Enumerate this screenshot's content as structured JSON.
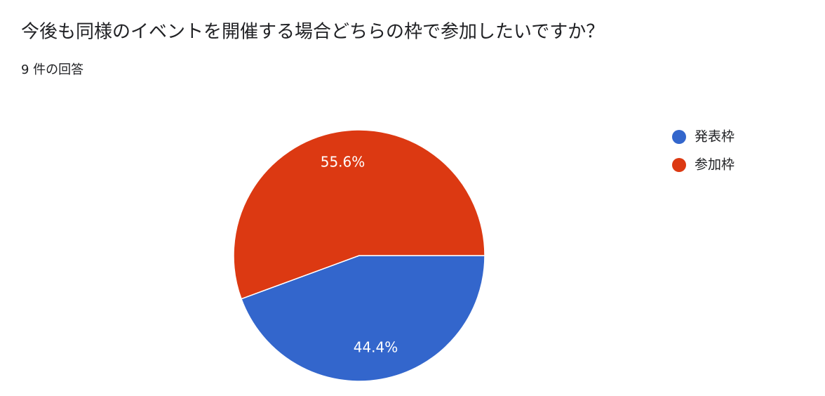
{
  "chart_data": {
    "type": "pie",
    "title": "今後も同様のイベントを開催する場合どちらの枠で参加したいですか？",
    "subtitle": "9 件の回答",
    "categories": [
      "発表枠",
      "参加枠"
    ],
    "values": [
      44.4,
      55.6
    ],
    "value_labels": [
      "44.4%",
      "55.6%"
    ],
    "colors": [
      "#3366cc",
      "#dc3912"
    ],
    "legend": "right"
  }
}
